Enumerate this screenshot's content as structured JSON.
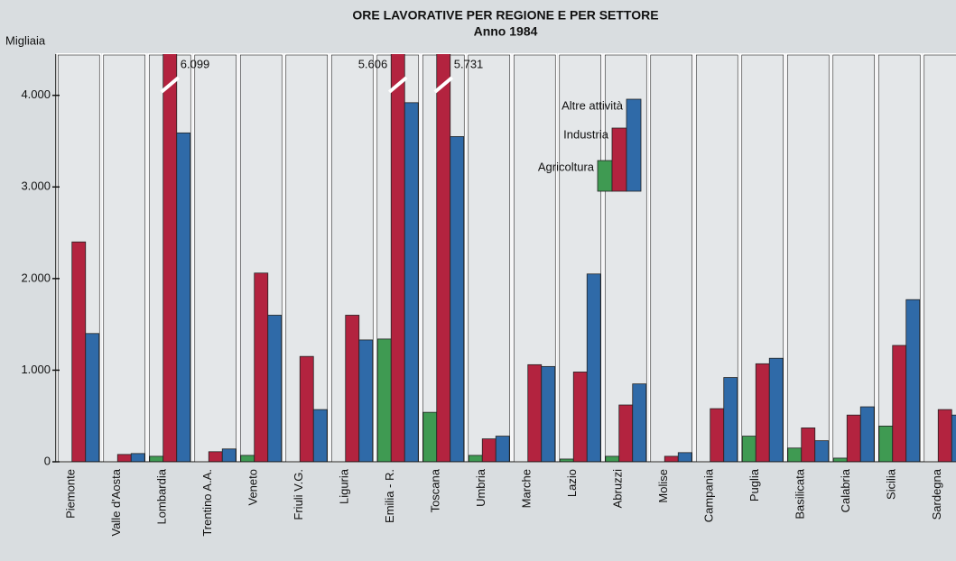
{
  "chart_data": {
    "type": "bar",
    "title": "ORE LAVORATIVE PER REGIONE E PER SETTORE",
    "subtitle": "Anno 1984",
    "y_label": "Migliaia",
    "categories": [
      "Piemonte",
      "Valle d'Aosta",
      "Lombardia",
      "Trentino A.A.",
      "Veneto",
      "Friuli V.G.",
      "Liguria",
      "Emilia - R.",
      "Toscana",
      "Umbria",
      "Marche",
      "Lazio",
      "Abruzzi",
      "Molise",
      "Campania",
      "Puglia",
      "Basilicata",
      "Calabria",
      "Sicilia",
      "Sardegna"
    ],
    "series": [
      {
        "name": "Agricoltura",
        "color": "#3f9a52",
        "values": [
          0,
          0,
          60,
          0,
          70,
          0,
          0,
          1340,
          540,
          70,
          0,
          30,
          60,
          0,
          0,
          280,
          150,
          40,
          390,
          0
        ]
      },
      {
        "name": "Industria",
        "color": "#b3233f",
        "values": [
          2400,
          80,
          6099,
          110,
          2060,
          1150,
          1600,
          5606,
          5731,
          250,
          1060,
          980,
          620,
          60,
          580,
          1070,
          370,
          510,
          1270,
          570
        ],
        "value_labels": [
          null,
          null,
          "6.099",
          null,
          null,
          null,
          null,
          "5.606",
          "5.731",
          null,
          null,
          null,
          null,
          null,
          null,
          null,
          null,
          null,
          null,
          null
        ]
      },
      {
        "name": "Altre attività",
        "color": "#2f6aa8",
        "values": [
          1400,
          90,
          3590,
          140,
          1600,
          570,
          1330,
          3920,
          3550,
          280,
          1040,
          2050,
          850,
          100,
          920,
          1130,
          230,
          600,
          1770,
          510
        ]
      }
    ],
    "ylim": [
      0,
      4450
    ],
    "yticks": [
      0,
      {
        "value": 1000,
        "label": "1.000"
      },
      {
        "value": 2000,
        "label": "2.000"
      },
      {
        "value": 3000,
        "label": "3.000"
      },
      {
        "value": 4000,
        "label": "4.000"
      }
    ]
  }
}
